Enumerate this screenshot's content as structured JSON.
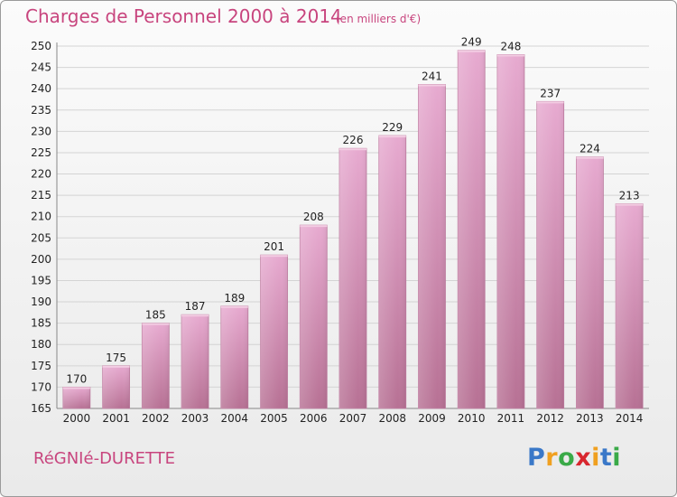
{
  "header": {
    "title": "Charges de Personnel 2000 à 2014",
    "unit": "(en milliers d'€)"
  },
  "footer": {
    "commune": "RéGNIé-DURETTE",
    "logo": {
      "letters": [
        "P",
        "r",
        "o",
        "x",
        "i",
        "t",
        "i"
      ],
      "colors": [
        "#3a78c8",
        "#f0a020",
        "#3aaa48",
        "#d8262e",
        "#f0a020",
        "#3a78c8",
        "#3aaa48"
      ]
    }
  },
  "colors": {
    "title": "#c8457e",
    "bar_top": "#e7aad0",
    "bar_bottom": "#b77194",
    "grid": "#d4d4d4",
    "axis_text": "#222222"
  },
  "chart_data": {
    "type": "bar",
    "title": "Charges de Personnel 2000 à 2014",
    "subtitle": "(en milliers d'€)",
    "categories": [
      "2000",
      "2001",
      "2002",
      "2003",
      "2004",
      "2005",
      "2006",
      "2007",
      "2008",
      "2009",
      "2010",
      "2011",
      "2012",
      "2013",
      "2014"
    ],
    "values": [
      170,
      175,
      185,
      187,
      189,
      201,
      208,
      226,
      229,
      241,
      249,
      248,
      237,
      224,
      213
    ],
    "ylim": [
      165,
      250
    ],
    "yticks": [
      165,
      170,
      175,
      180,
      185,
      190,
      195,
      200,
      205,
      210,
      215,
      220,
      225,
      230,
      235,
      240,
      245,
      250
    ],
    "grid": true,
    "data_labels": true
  }
}
